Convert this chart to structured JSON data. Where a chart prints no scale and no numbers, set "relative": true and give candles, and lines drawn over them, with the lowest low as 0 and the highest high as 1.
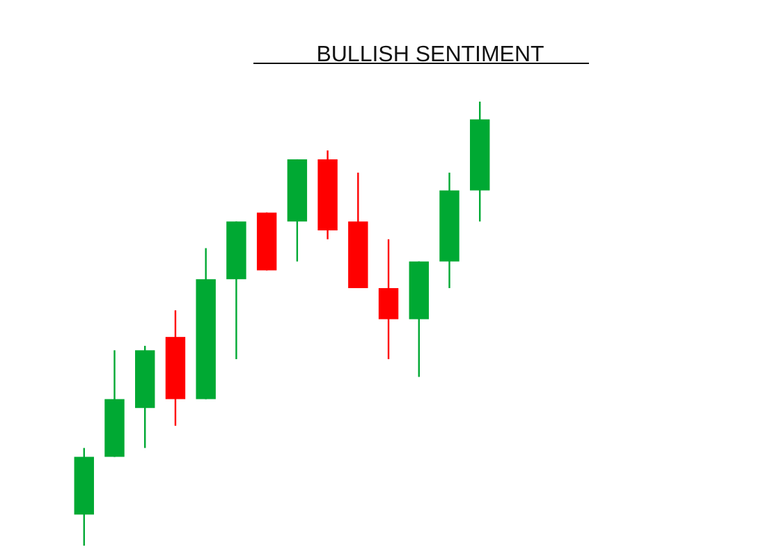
{
  "chart_data": {
    "type": "candlestick",
    "title": "BULLISH SENTIMENT",
    "relative": true,
    "categories": [
      null,
      null,
      null,
      null,
      null,
      null,
      null,
      null,
      null,
      null,
      null,
      null,
      null,
      null
    ],
    "ohlc": [
      [
        0.07,
        0.22,
        0,
        0.2
      ],
      [
        0.2,
        0.44,
        0.2,
        0.33
      ],
      [
        0.31,
        0.45,
        0.22,
        0.44
      ],
      [
        0.47,
        0.53,
        0.27,
        0.33
      ],
      [
        0.33,
        0.67,
        0.33,
        0.6
      ],
      [
        0.6,
        0.73,
        0.42,
        0.73
      ],
      [
        0.75,
        0.75,
        0.62,
        0.62
      ],
      [
        0.73,
        0.87,
        0.64,
        0.87
      ],
      [
        0.87,
        0.89,
        0.69,
        0.71
      ],
      [
        0.73,
        0.84,
        0.58,
        0.58
      ],
      [
        0.58,
        0.69,
        0.42,
        0.51
      ],
      [
        0.51,
        0.64,
        0.38,
        0.64
      ],
      [
        0.64,
        0.84,
        0.58,
        0.8
      ],
      [
        0.8,
        1,
        0.73,
        0.96
      ]
    ],
    "colors": [
      "#00a933",
      "#00a933",
      "#00a933",
      "#ff0000",
      "#00a933",
      "#00a933",
      "#ff0000",
      "#00a933",
      "#ff0000",
      "#ff0000",
      "#ff0000",
      "#00a933",
      "#00a933",
      "#00a933"
    ]
  }
}
